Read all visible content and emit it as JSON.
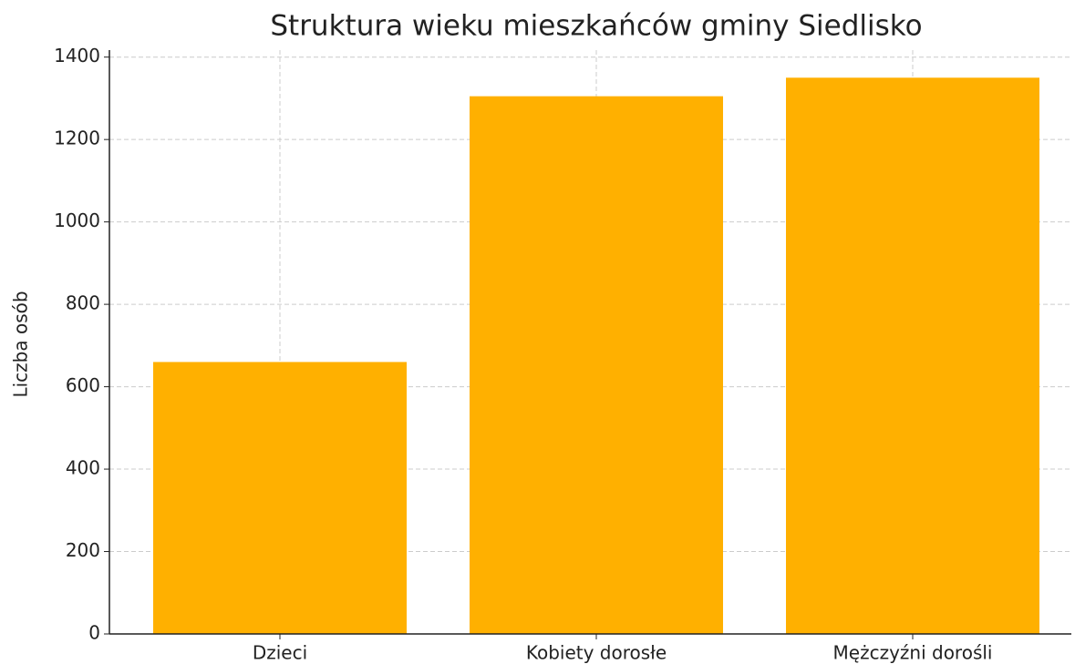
{
  "chart_data": {
    "type": "bar",
    "title": "Struktura wieku mieszkańców gminy Siedlisko",
    "y_label": "Liczba osób",
    "categories": [
      "Dzieci",
      "Kobiety dorosłe",
      "Mężczyźni dorośli"
    ],
    "values": [
      660,
      1305,
      1350
    ],
    "color": "#ffb000",
    "ylim": [
      0,
      1417
    ],
    "yticks": [
      0,
      200,
      400,
      600,
      800,
      1000,
      1200,
      1400
    ],
    "grid": true
  }
}
